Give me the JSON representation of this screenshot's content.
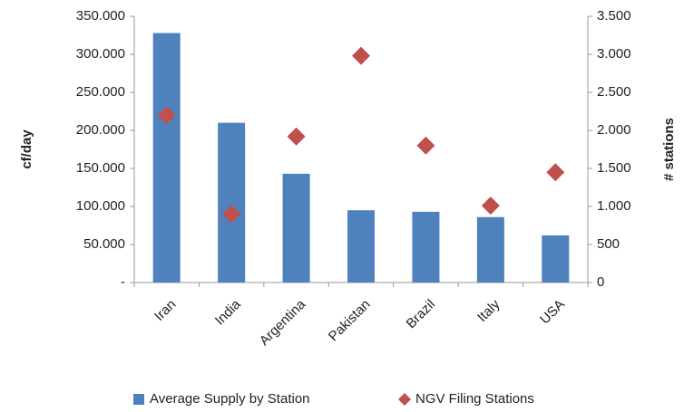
{
  "chart_data": {
    "type": "bar+scatter",
    "categories": [
      "Iran",
      "India",
      "Argentina",
      "Pakistan",
      "Brazil",
      "Italy",
      "USA"
    ],
    "series": [
      {
        "name": "Average Supply by Station",
        "color": "#4f81bd",
        "type": "bar",
        "axis": "y",
        "values": [
          328000,
          210000,
          143000,
          95000,
          93000,
          86000,
          62000
        ]
      },
      {
        "name": "NGV Filing Stations",
        "color": "#c0504d",
        "type": "scatter",
        "axis": "y2",
        "values": [
          2200,
          900,
          1920,
          2980,
          1800,
          1010,
          1450
        ]
      }
    ],
    "y_label": "cf/day",
    "y2_label": "# stations",
    "ylim": [
      0,
      350000
    ],
    "yticks": [
      {
        "value": 0,
        "label": "-"
      },
      {
        "value": 50000,
        "label": "50.000"
      },
      {
        "value": 100000,
        "label": "100.000"
      },
      {
        "value": 150000,
        "label": "150.000"
      },
      {
        "value": 200000,
        "label": "200.000"
      },
      {
        "value": 250000,
        "label": "250.000"
      },
      {
        "value": 300000,
        "label": "300.000"
      },
      {
        "value": 350000,
        "label": "350.000"
      }
    ],
    "y2lim": [
      0,
      3500
    ],
    "y2ticks": [
      0,
      500,
      {
        "value": 1000,
        "label": "1.000"
      },
      {
        "value": 1500,
        "label": "1.500"
      },
      {
        "value": 2000,
        "label": "2.000"
      },
      {
        "value": 2500,
        "label": "2.500"
      },
      {
        "value": 3000,
        "label": "3.000"
      },
      {
        "value": 3500,
        "label": "3.500"
      }
    ],
    "grid": false,
    "legend": "bottom"
  }
}
